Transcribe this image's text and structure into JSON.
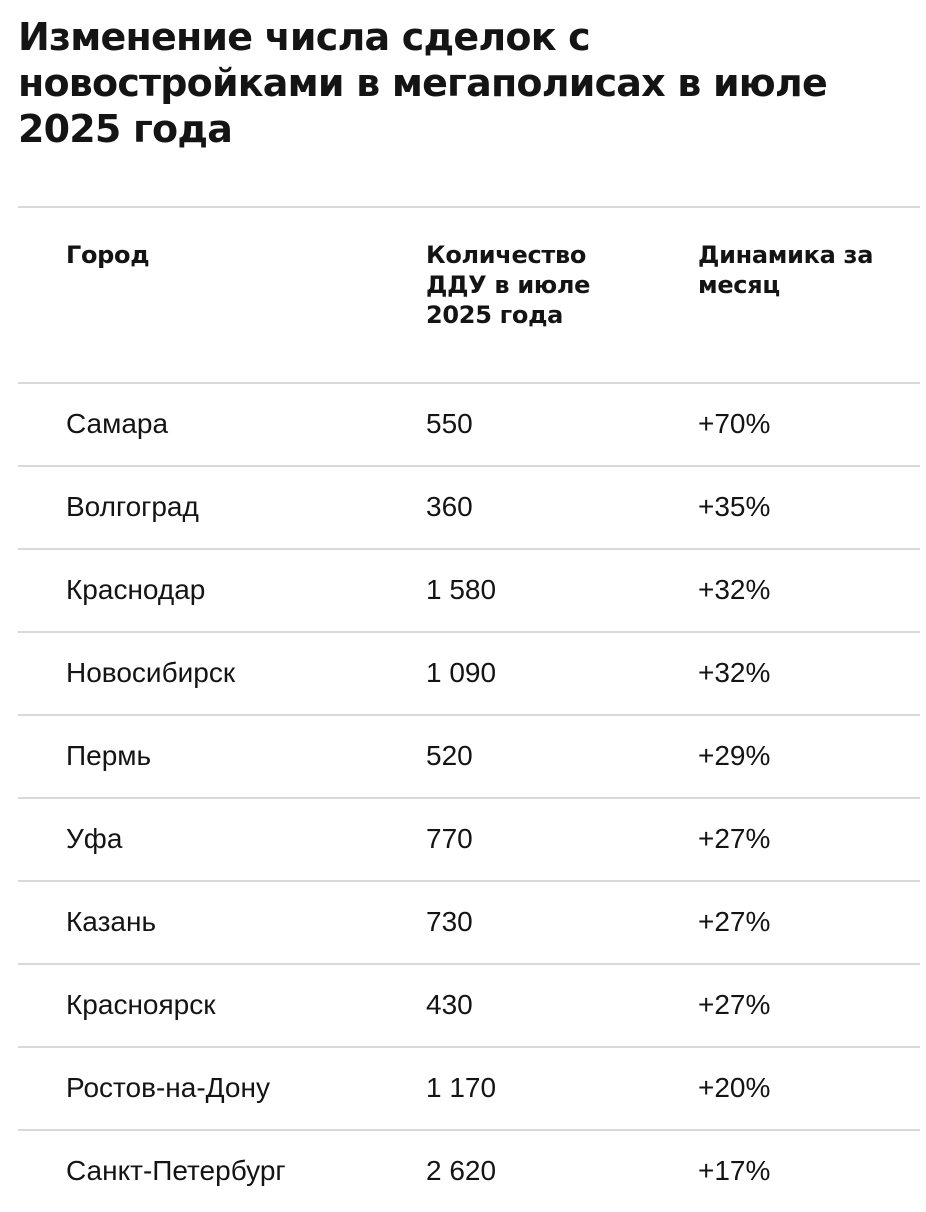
{
  "title": "Изменение числа сделок с новостройками в мегаполисах в июле 2025 года",
  "table": {
    "headers": {
      "city": "Город",
      "count": "Количество ДДУ в июле 2025 года",
      "dynamics": "Динамика за месяц"
    },
    "rows": [
      {
        "city": "Самара",
        "count": "550",
        "dynamics": "+70%"
      },
      {
        "city": "Волгоград",
        "count": "360",
        "dynamics": "+35%"
      },
      {
        "city": "Краснодар",
        "count": "1 580",
        "dynamics": "+32%"
      },
      {
        "city": "Новосибирск",
        "count": "1 090",
        "dynamics": "+32%"
      },
      {
        "city": "Пермь",
        "count": "520",
        "dynamics": "+29%"
      },
      {
        "city": "Уфа",
        "count": "770",
        "dynamics": "+27%"
      },
      {
        "city": "Казань",
        "count": "730",
        "dynamics": "+27%"
      },
      {
        "city": "Красноярск",
        "count": "430",
        "dynamics": "+27%"
      },
      {
        "city": "Ростов-на-Дону",
        "count": "1 170",
        "dynamics": "+20%"
      },
      {
        "city": "Санкт-Петербург",
        "count": "2 620",
        "dynamics": "+17%"
      }
    ]
  }
}
